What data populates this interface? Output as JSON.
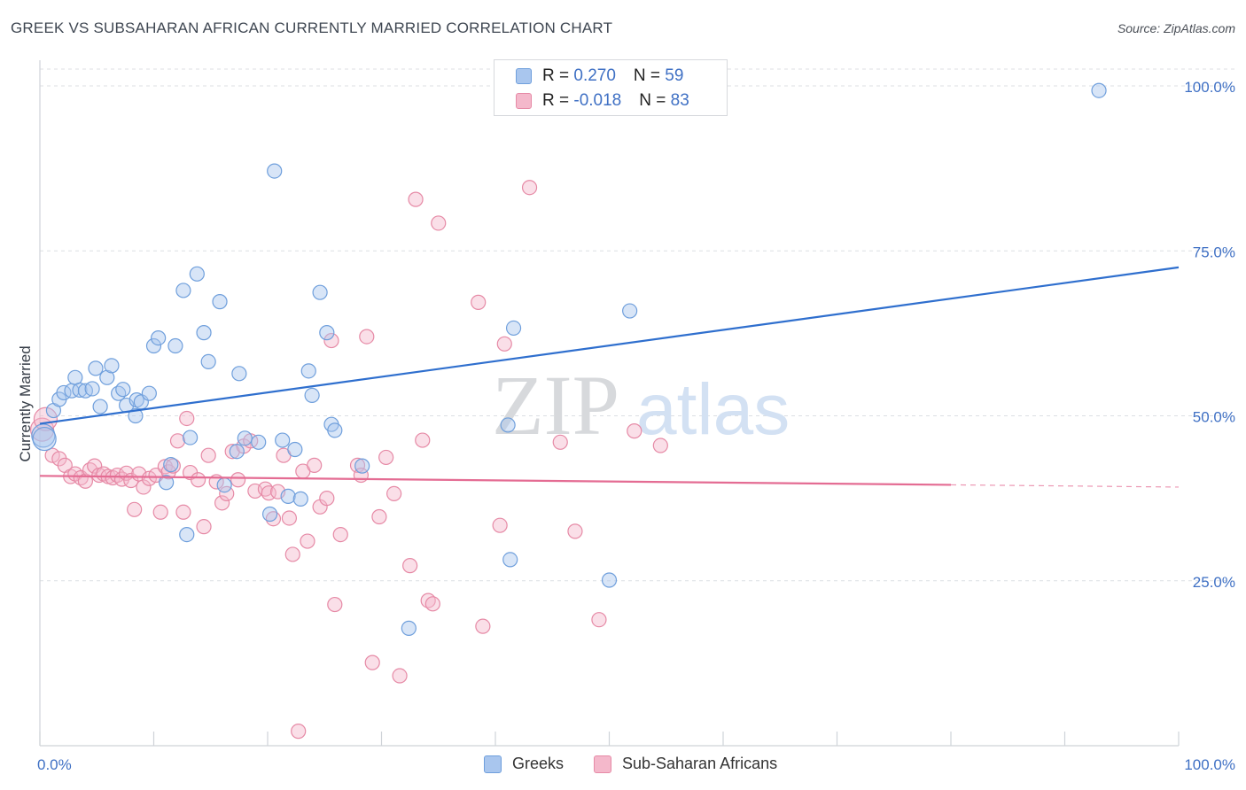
{
  "title": "GREEK VS SUBSAHARAN AFRICAN CURRENTLY MARRIED CORRELATION CHART",
  "source": "Source: ZipAtlas.com",
  "watermark": {
    "zip": "ZIP",
    "atlas": "atlas"
  },
  "legend": {
    "rows": [
      {
        "r_label": "R = ",
        "r_value": "0.270",
        "n_label": "N = ",
        "n_value": "59",
        "color": "#a9c6ee"
      },
      {
        "r_label": "R = ",
        "r_value": "-0.018",
        "n_label": "N = ",
        "n_value": "83",
        "color": "#f4b8cb"
      }
    ]
  },
  "bottom_legend": [
    {
      "label": "Greeks",
      "color": "#a9c6ee"
    },
    {
      "label": "Sub-Saharan Africans",
      "color": "#f4b8cb"
    }
  ],
  "chart_data": {
    "type": "scatter",
    "title": "GREEK VS SUBSAHARAN AFRICAN CURRENTLY MARRIED CORRELATION CHART",
    "xlabel": "",
    "ylabel": "Currently Married",
    "xlim": [
      0,
      100
    ],
    "ylim": [
      0,
      102
    ],
    "x_tick_labels": [
      "0.0%",
      "100.0%"
    ],
    "y_ticks": [
      25,
      50,
      75,
      100
    ],
    "y_tick_labels": [
      "25.0%",
      "50.0%",
      "75.0%",
      "100.0%"
    ],
    "grid": "horizontal dashed",
    "legend_position": "top-center",
    "series": [
      {
        "name": "Greeks",
        "color": "#a9c6ee",
        "stroke": "#6f9fdc",
        "line_color": "#2f6fce",
        "trend": {
          "x0": 0,
          "y0": 48.8,
          "x1": 100,
          "y1": 72.5,
          "dashed_from": null
        },
        "points": [
          [
            0.3,
            47.0
          ],
          [
            0.4,
            46.5
          ],
          [
            1.2,
            50.8
          ],
          [
            1.7,
            52.5
          ],
          [
            2.1,
            53.5
          ],
          [
            2.8,
            53.8
          ],
          [
            3.1,
            55.8
          ],
          [
            3.5,
            53.9
          ],
          [
            4.0,
            53.8
          ],
          [
            4.6,
            54.1
          ],
          [
            4.9,
            57.2
          ],
          [
            5.3,
            51.4
          ],
          [
            5.9,
            55.8
          ],
          [
            6.3,
            57.6
          ],
          [
            6.9,
            53.4
          ],
          [
            7.3,
            54.0
          ],
          [
            7.6,
            51.6
          ],
          [
            8.4,
            50.0
          ],
          [
            8.5,
            52.4
          ],
          [
            8.9,
            52.1
          ],
          [
            9.6,
            53.4
          ],
          [
            10.0,
            60.6
          ],
          [
            10.4,
            61.8
          ],
          [
            11.1,
            39.9
          ],
          [
            11.5,
            42.6
          ],
          [
            11.9,
            60.6
          ],
          [
            12.6,
            69.0
          ],
          [
            12.9,
            32.0
          ],
          [
            13.2,
            46.7
          ],
          [
            13.8,
            71.5
          ],
          [
            14.4,
            62.6
          ],
          [
            14.8,
            58.2
          ],
          [
            15.8,
            67.3
          ],
          [
            16.2,
            39.5
          ],
          [
            17.3,
            44.6
          ],
          [
            17.5,
            56.4
          ],
          [
            18.0,
            46.6
          ],
          [
            19.2,
            46.0
          ],
          [
            20.2,
            35.1
          ],
          [
            20.6,
            87.1
          ],
          [
            21.3,
            46.3
          ],
          [
            21.8,
            37.8
          ],
          [
            22.4,
            44.9
          ],
          [
            22.9,
            37.4
          ],
          [
            23.6,
            56.8
          ],
          [
            23.9,
            53.1
          ],
          [
            24.6,
            68.7
          ],
          [
            25.2,
            62.6
          ],
          [
            25.6,
            48.7
          ],
          [
            25.9,
            47.8
          ],
          [
            28.3,
            42.4
          ],
          [
            32.4,
            17.8
          ],
          [
            41.1,
            48.6
          ],
          [
            41.6,
            63.3
          ],
          [
            41.3,
            28.2
          ],
          [
            50.0,
            25.1
          ],
          [
            51.8,
            65.9
          ],
          [
            56.2,
            100.0
          ],
          [
            93.0,
            99.3
          ]
        ]
      },
      {
        "name": "Sub-Saharan Africans",
        "color": "#f4b8cb",
        "stroke": "#e68aa6",
        "line_color": "#e46c93",
        "trend": {
          "x0": 0,
          "y0": 40.9,
          "x1": 100,
          "y1": 39.2,
          "dashed_from": 80
        },
        "points": [
          [
            0.2,
            47.9
          ],
          [
            0.5,
            49.5
          ],
          [
            1.1,
            44.0
          ],
          [
            1.7,
            43.5
          ],
          [
            2.2,
            42.5
          ],
          [
            2.7,
            40.8
          ],
          [
            3.1,
            41.2
          ],
          [
            3.6,
            40.6
          ],
          [
            4.0,
            40.1
          ],
          [
            4.4,
            41.8
          ],
          [
            4.8,
            42.4
          ],
          [
            5.2,
            41.0
          ],
          [
            5.6,
            41.2
          ],
          [
            6.0,
            40.8
          ],
          [
            6.4,
            40.6
          ],
          [
            6.8,
            41.0
          ],
          [
            7.2,
            40.4
          ],
          [
            7.6,
            41.3
          ],
          [
            8.0,
            40.2
          ],
          [
            8.3,
            35.8
          ],
          [
            8.7,
            41.2
          ],
          [
            9.1,
            39.2
          ],
          [
            9.6,
            40.5
          ],
          [
            10.2,
            41.0
          ],
          [
            10.6,
            35.4
          ],
          [
            11.0,
            42.3
          ],
          [
            11.3,
            41.5
          ],
          [
            11.7,
            42.4
          ],
          [
            12.1,
            46.2
          ],
          [
            12.6,
            35.4
          ],
          [
            12.9,
            49.6
          ],
          [
            13.2,
            41.4
          ],
          [
            13.9,
            40.3
          ],
          [
            14.4,
            33.2
          ],
          [
            14.8,
            44.0
          ],
          [
            15.5,
            40.0
          ],
          [
            16.0,
            36.8
          ],
          [
            16.4,
            38.2
          ],
          [
            16.9,
            44.6
          ],
          [
            17.4,
            40.3
          ],
          [
            17.9,
            45.4
          ],
          [
            18.5,
            46.2
          ],
          [
            18.9,
            38.6
          ],
          [
            19.8,
            38.9
          ],
          [
            20.1,
            38.3
          ],
          [
            20.5,
            34.4
          ],
          [
            20.9,
            38.5
          ],
          [
            21.4,
            44.0
          ],
          [
            21.9,
            34.5
          ],
          [
            22.2,
            29.0
          ],
          [
            22.7,
            2.2
          ],
          [
            23.1,
            41.6
          ],
          [
            23.5,
            31.0
          ],
          [
            24.1,
            42.5
          ],
          [
            24.6,
            36.2
          ],
          [
            25.2,
            37.5
          ],
          [
            25.6,
            61.4
          ],
          [
            25.9,
            21.4
          ],
          [
            26.4,
            32.0
          ],
          [
            27.9,
            42.5
          ],
          [
            28.2,
            41.0
          ],
          [
            28.7,
            62.0
          ],
          [
            29.2,
            12.6
          ],
          [
            29.8,
            34.7
          ],
          [
            30.4,
            43.7
          ],
          [
            31.1,
            38.2
          ],
          [
            31.6,
            10.6
          ],
          [
            32.5,
            27.3
          ],
          [
            33.0,
            82.8
          ],
          [
            33.6,
            46.3
          ],
          [
            34.1,
            22.0
          ],
          [
            34.5,
            21.5
          ],
          [
            35.0,
            79.2
          ],
          [
            38.5,
            67.2
          ],
          [
            38.9,
            18.1
          ],
          [
            40.4,
            33.4
          ],
          [
            40.8,
            60.9
          ],
          [
            43.0,
            84.6
          ],
          [
            45.7,
            46.0
          ],
          [
            47.0,
            32.5
          ],
          [
            49.1,
            19.1
          ],
          [
            52.2,
            47.7
          ],
          [
            54.5,
            45.5
          ]
        ]
      }
    ],
    "extra_points_note": ""
  }
}
